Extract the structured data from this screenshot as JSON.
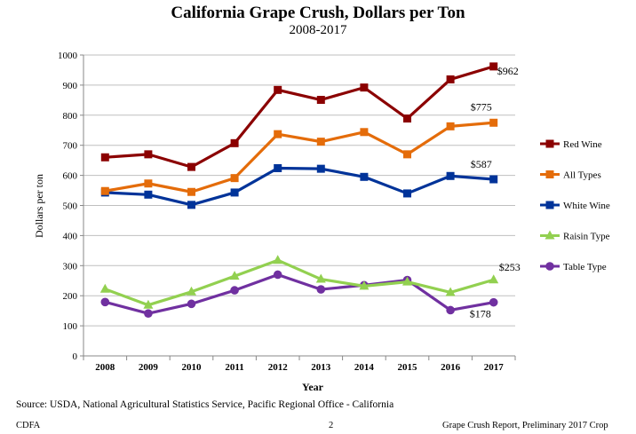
{
  "chart_data": {
    "type": "line",
    "title": "California Grape Crush, Dollars per Ton",
    "subtitle": "2008-2017",
    "xlabel": "Year",
    "ylabel": "Dollars per ton",
    "ylim": [
      0,
      1000
    ],
    "yticks": [
      0,
      100,
      200,
      300,
      400,
      500,
      600,
      700,
      800,
      900,
      1000
    ],
    "categories": [
      "2008",
      "2009",
      "2010",
      "2011",
      "2012",
      "2013",
      "2014",
      "2015",
      "2016",
      "2017"
    ],
    "legend_position": "right",
    "series": [
      {
        "name": "Red Wine",
        "color": "#8b0000",
        "marker": "square",
        "values": [
          660,
          670,
          628,
          707,
          884,
          851,
          892,
          789,
          919,
          962
        ],
        "end_label": "$962"
      },
      {
        "name": "All Types",
        "color": "#e46c0a",
        "marker": "square",
        "values": [
          548,
          573,
          545,
          591,
          737,
          712,
          744,
          670,
          763,
          775
        ],
        "end_label": "$775"
      },
      {
        "name": "White Wine",
        "color": "#003399",
        "marker": "square",
        "values": [
          543,
          536,
          502,
          543,
          624,
          622,
          595,
          540,
          598,
          587
        ],
        "end_label": "$587"
      },
      {
        "name": "Raisin Type",
        "color": "#92d050",
        "marker": "triangle",
        "values": [
          222,
          169,
          213,
          265,
          318,
          255,
          232,
          246,
          211,
          253
        ],
        "end_label": "$253"
      },
      {
        "name": "Table Type",
        "color": "#7030a0",
        "marker": "circle",
        "values": [
          179,
          141,
          173,
          218,
          270,
          221,
          235,
          252,
          152,
          178
        ],
        "end_label": "$178"
      }
    ]
  },
  "source": "Source: USDA, National Agricultural Statistics Service, Pacific Regional Office - California",
  "footer": {
    "left": "CDFA",
    "center": "2",
    "right": "Grape Crush Report, Preliminary 2017 Crop"
  }
}
